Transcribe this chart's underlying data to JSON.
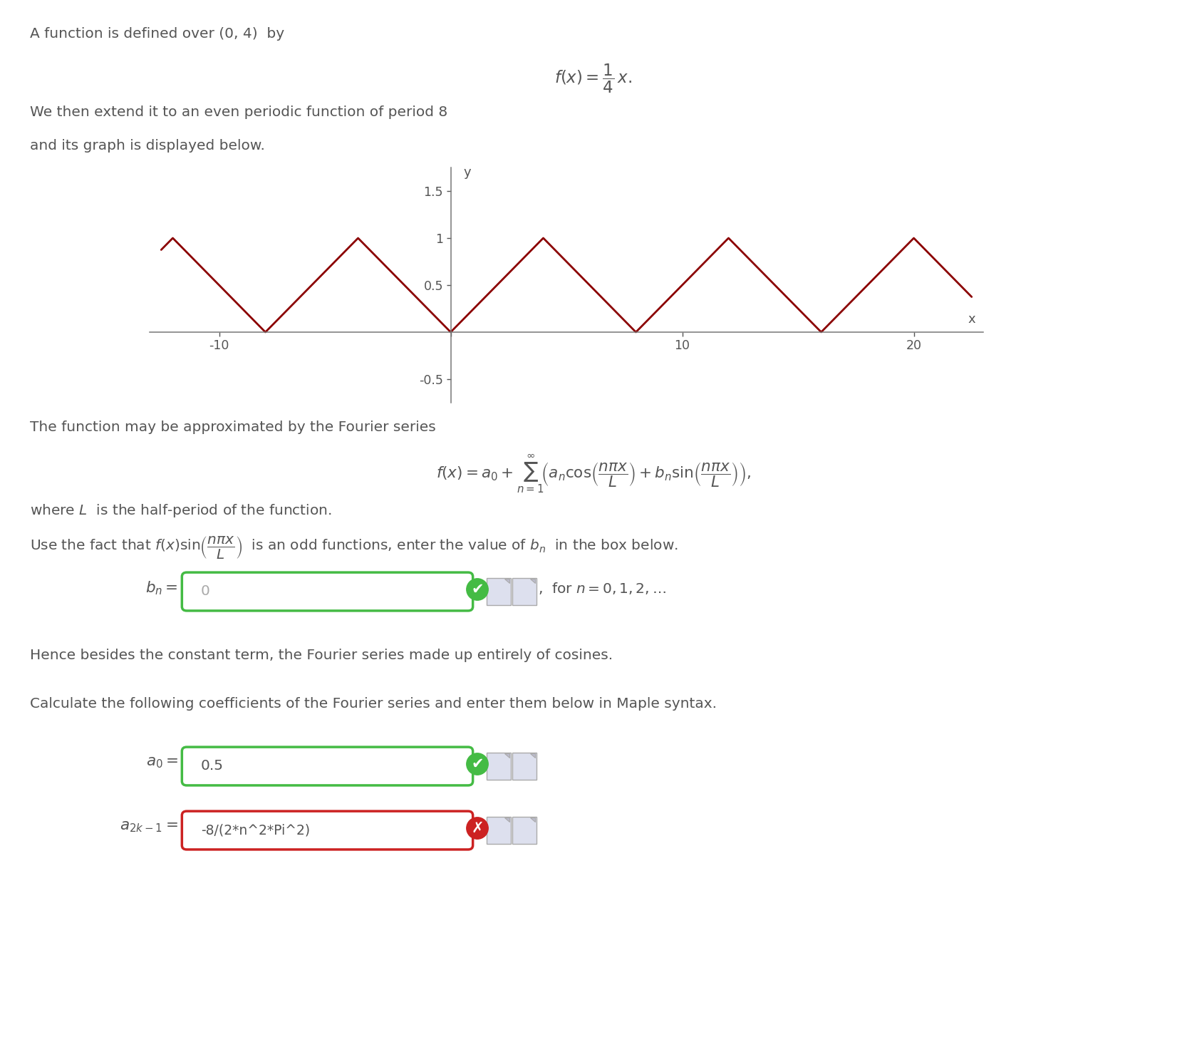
{
  "bg_color": "#ffffff",
  "text_color": "#555555",
  "plot_line_color": "#8B0000",
  "plot_bg": "#ffffff",
  "axis_color": "#777777",
  "title_line1": "A function is defined over (0, 4)  by",
  "formula_fx": "$f(x) = \\dfrac{1}{4}\\, x.$",
  "line2": "We then extend it to an even periodic function of period 8",
  "line3": "and its graph is displayed below.",
  "graph_xlim": [
    -13,
    23
  ],
  "graph_ylim": [
    -0.75,
    1.75
  ],
  "graph_xticks": [
    -10,
    0,
    10,
    20
  ],
  "graph_yticks": [
    -0.5,
    0.5,
    1.0,
    1.5
  ],
  "xlabel": "x",
  "ylabel": "y",
  "fourier_line1": "The function may be approximated by the Fourier series",
  "fourier_formula": "$f(x) = a_0 + \\sum_{n=1}^{\\infty}\\!\\left(a_n \\cos\\!\\left(\\dfrac{n\\pi x}{L}\\right) + b_n \\sin\\!\\left(\\dfrac{n\\pi x}{L}\\right)\\right),$",
  "half_period_line": "where $L$  is the half-period of the function.",
  "use_fact_line": "Use the fact that $f(x)\\sin\\!\\left(\\dfrac{n\\pi x}{L}\\right)$  is an odd functions, enter the value of $b_n$  in the box below.",
  "bn_label": "$b_n =$",
  "bn_value": "0",
  "bn_suffix": ",  for $n = 0, 1, 2, \\ldots$",
  "hence_line": "Hence besides the constant term, the Fourier series made up entirely of cosines.",
  "calculate_line": "Calculate the following coefficients of the Fourier series and enter them below in Maple syntax.",
  "a0_label": "$a_0 =$",
  "a0_value": "0.5",
  "a2k1_label": "$a_{2k-1} =$",
  "a2k1_value": "-8/(2*n^2*Pi^2)",
  "green_color": "#44bb44",
  "red_color": "#cc2222",
  "icon_color": "#dde0ee",
  "icon_edge": "#aaaaaa"
}
